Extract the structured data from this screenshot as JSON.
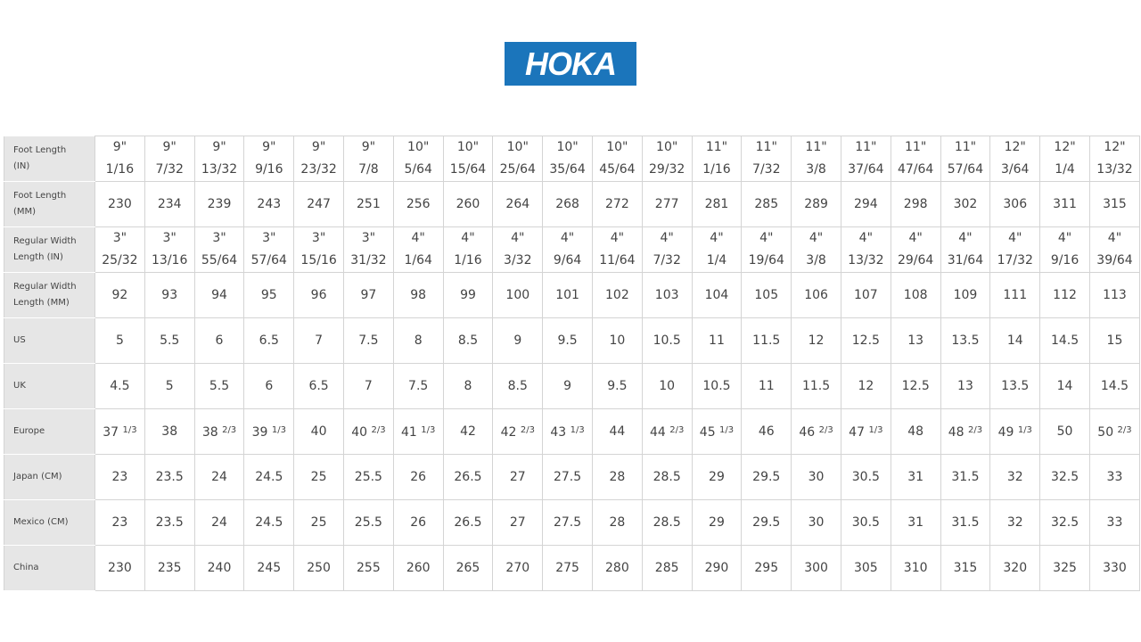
{
  "brand": {
    "logo_text": "HOKA",
    "color": "#1b75bb"
  },
  "size_chart": {
    "rows": [
      {
        "label": [
          "Foot Length",
          "(IN)"
        ],
        "type": "two-line",
        "values": [
          [
            "9\"",
            "1/16"
          ],
          [
            "9\"",
            "7/32"
          ],
          [
            "9\"",
            "13/32"
          ],
          [
            "9\"",
            "9/16"
          ],
          [
            "9\"",
            "23/32"
          ],
          [
            "9\"",
            "7/8"
          ],
          [
            "10\"",
            "5/64"
          ],
          [
            "10\"",
            "15/64"
          ],
          [
            "10\"",
            "25/64"
          ],
          [
            "10\"",
            "35/64"
          ],
          [
            "10\"",
            "45/64"
          ],
          [
            "10\"",
            "29/32"
          ],
          [
            "11\"",
            "1/16"
          ],
          [
            "11\"",
            "7/32"
          ],
          [
            "11\"",
            "3/8"
          ],
          [
            "11\"",
            "37/64"
          ],
          [
            "11\"",
            "47/64"
          ],
          [
            "11\"",
            "57/64"
          ],
          [
            "12\"",
            "3/64"
          ],
          [
            "12\"",
            "1/4"
          ],
          [
            "12\"",
            "13/32"
          ]
        ]
      },
      {
        "label": [
          "Foot Length",
          "(MM)"
        ],
        "type": "plain",
        "values": [
          "230",
          "234",
          "239",
          "243",
          "247",
          "251",
          "256",
          "260",
          "264",
          "268",
          "272",
          "277",
          "281",
          "285",
          "289",
          "294",
          "298",
          "302",
          "306",
          "311",
          "315"
        ]
      },
      {
        "label": [
          "Regular Width",
          "Length (IN)"
        ],
        "type": "two-line",
        "values": [
          [
            "3\"",
            "25/32"
          ],
          [
            "3\"",
            "13/16"
          ],
          [
            "3\"",
            "55/64"
          ],
          [
            "3\"",
            "57/64"
          ],
          [
            "3\"",
            "15/16"
          ],
          [
            "3\"",
            "31/32"
          ],
          [
            "4\"",
            "1/64"
          ],
          [
            "4\"",
            "1/16"
          ],
          [
            "4\"",
            "3/32"
          ],
          [
            "4\"",
            "9/64"
          ],
          [
            "4\"",
            "11/64"
          ],
          [
            "4\"",
            "7/32"
          ],
          [
            "4\"",
            "1/4"
          ],
          [
            "4\"",
            "19/64"
          ],
          [
            "4\"",
            "3/8"
          ],
          [
            "4\"",
            "13/32"
          ],
          [
            "4\"",
            "29/64"
          ],
          [
            "4\"",
            "31/64"
          ],
          [
            "4\"",
            "17/32"
          ],
          [
            "4\"",
            "9/16"
          ],
          [
            "4\"",
            "39/64"
          ]
        ]
      },
      {
        "label": [
          "Regular Width",
          "Length (MM)"
        ],
        "type": "plain",
        "values": [
          "92",
          "93",
          "94",
          "95",
          "96",
          "97",
          "98",
          "99",
          "100",
          "101",
          "102",
          "103",
          "104",
          "105",
          "106",
          "107",
          "108",
          "109",
          "111",
          "112",
          "113"
        ]
      },
      {
        "label": [
          "US"
        ],
        "type": "plain",
        "values": [
          "5",
          "5.5",
          "6",
          "6.5",
          "7",
          "7.5",
          "8",
          "8.5",
          "9",
          "9.5",
          "10",
          "10.5",
          "11",
          "11.5",
          "12",
          "12.5",
          "13",
          "13.5",
          "14",
          "14.5",
          "15"
        ]
      },
      {
        "label": [
          "UK"
        ],
        "type": "plain",
        "values": [
          "4.5",
          "5",
          "5.5",
          "6",
          "6.5",
          "7",
          "7.5",
          "8",
          "8.5",
          "9",
          "9.5",
          "10",
          "10.5",
          "11",
          "11.5",
          "12",
          "12.5",
          "13",
          "13.5",
          "14",
          "14.5"
        ]
      },
      {
        "label": [
          "Europe"
        ],
        "type": "fraction",
        "values": [
          "37 1/3",
          "38",
          "38 2/3",
          "39 1/3",
          "40",
          "40 2/3",
          "41 1/3",
          "42",
          "42 2/3",
          "43 1/3",
          "44",
          "44 2/3",
          "45 1/3",
          "46",
          "46 2/3",
          "47 1/3",
          "48",
          "48 2/3",
          "49 1/3",
          "50",
          "50 2/3"
        ]
      },
      {
        "label": [
          "Japan (CM)"
        ],
        "type": "plain",
        "values": [
          "23",
          "23.5",
          "24",
          "24.5",
          "25",
          "25.5",
          "26",
          "26.5",
          "27",
          "27.5",
          "28",
          "28.5",
          "29",
          "29.5",
          "30",
          "30.5",
          "31",
          "31.5",
          "32",
          "32.5",
          "33"
        ]
      },
      {
        "label": [
          "Mexico (CM)"
        ],
        "type": "plain",
        "values": [
          "23",
          "23.5",
          "24",
          "24.5",
          "25",
          "25.5",
          "26",
          "26.5",
          "27",
          "27.5",
          "28",
          "28.5",
          "29",
          "29.5",
          "30",
          "30.5",
          "31",
          "31.5",
          "32",
          "32.5",
          "33"
        ]
      },
      {
        "label": [
          "China"
        ],
        "type": "plain",
        "values": [
          "230",
          "235",
          "240",
          "245",
          "250",
          "255",
          "260",
          "265",
          "270",
          "275",
          "280",
          "285",
          "290",
          "295",
          "300",
          "305",
          "310",
          "315",
          "320",
          "325",
          "330"
        ]
      }
    ]
  }
}
